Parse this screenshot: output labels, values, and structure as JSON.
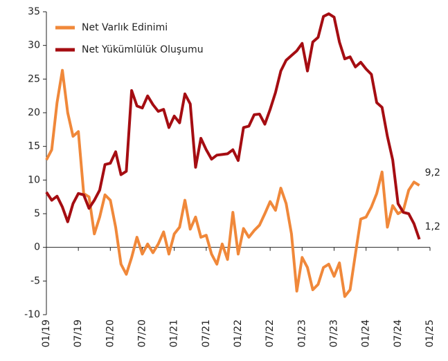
{
  "chart_data": {
    "type": "line",
    "categories": [
      "01/19",
      null,
      null,
      null,
      null,
      null,
      "07/19",
      null,
      null,
      null,
      null,
      null,
      "01/20",
      null,
      null,
      null,
      null,
      null,
      "07/20",
      null,
      null,
      null,
      null,
      null,
      "01/21",
      null,
      null,
      null,
      null,
      null,
      "07/21",
      null,
      null,
      null,
      null,
      null,
      "01/22",
      null,
      null,
      null,
      null,
      null,
      "07/22",
      null,
      null,
      null,
      null,
      null,
      "01/23",
      null,
      null,
      null,
      null,
      null,
      "07/23",
      null,
      null,
      null,
      null,
      null,
      "01/24",
      null,
      null,
      null,
      null,
      null,
      "07/24",
      null,
      null,
      null,
      null,
      null,
      "01/25"
    ],
    "series": [
      {
        "name": "Net Varlık Edinimi",
        "color": "#f0883a",
        "values": [
          13,
          14.5,
          21.5,
          26.3,
          20,
          16.5,
          17.2,
          8,
          7.5,
          2,
          4.5,
          7.8,
          7,
          3,
          -2.5,
          -4,
          -1.5,
          1.5,
          -1,
          0.5,
          -0.8,
          0.5,
          2.3,
          -1,
          2,
          3,
          7,
          2.7,
          4.5,
          1.5,
          1.8,
          -1,
          -2.5,
          0.5,
          -1.8,
          5.2,
          -1,
          2.8,
          1.5,
          2.5,
          3.3,
          5,
          6.8,
          5.5,
          8.8,
          6.5,
          2,
          -6.5,
          -1.5,
          -3,
          -6.3,
          -5.5,
          -3,
          -2.5,
          -4.3,
          -2.3,
          -7.3,
          -6.3,
          -1,
          4.2,
          4.5,
          6,
          8,
          11.2,
          3,
          6.2,
          5,
          5.5,
          8.5,
          9.7,
          9.2,
          null,
          null
        ],
        "value_labels": [
          null,
          null,
          null,
          null,
          null,
          null,
          null,
          null,
          null,
          null,
          null,
          null,
          null,
          null,
          null,
          null,
          null,
          null,
          null,
          null,
          null,
          null,
          null,
          null,
          null,
          null,
          null,
          null,
          null,
          null,
          null,
          null,
          null,
          null,
          null,
          null,
          null,
          null,
          null,
          null,
          null,
          null,
          null,
          null,
          null,
          null,
          null,
          null,
          null,
          null,
          null,
          null,
          null,
          null,
          null,
          null,
          null,
          null,
          null,
          null,
          null,
          null,
          null,
          null,
          null,
          null,
          null,
          null,
          null,
          null,
          "9,2",
          null,
          null
        ]
      },
      {
        "name": "Net Yükümlülük Oluşumu",
        "color": "#a50d12",
        "values": [
          8.2,
          7,
          7.6,
          6,
          3.8,
          6.5,
          8,
          7.8,
          5.8,
          7,
          8.5,
          12.3,
          12.5,
          14.2,
          10.8,
          11.3,
          23.3,
          21,
          20.7,
          22.5,
          21.2,
          20.2,
          20.5,
          17.8,
          19.5,
          18.5,
          22.8,
          21.3,
          11.9,
          16.2,
          14.5,
          13.1,
          13.7,
          13.8,
          13.9,
          14.5,
          12.9,
          17.8,
          18,
          19.7,
          19.8,
          18.3,
          20.5,
          23,
          26.2,
          27.8,
          28.5,
          29.2,
          30.3,
          26.2,
          30.5,
          31.2,
          34.3,
          34.7,
          34.2,
          30.5,
          28,
          28.3,
          26.8,
          27.5,
          26.5,
          25.7,
          21.5,
          20.8,
          16.5,
          13,
          6.5,
          5.2,
          5,
          3.5,
          1.2,
          null,
          null
        ],
        "value_labels": [
          null,
          null,
          null,
          null,
          null,
          null,
          null,
          null,
          null,
          null,
          null,
          null,
          null,
          null,
          null,
          null,
          null,
          null,
          null,
          null,
          null,
          null,
          null,
          null,
          null,
          null,
          null,
          null,
          null,
          null,
          null,
          null,
          null,
          null,
          null,
          null,
          null,
          null,
          null,
          null,
          null,
          null,
          null,
          null,
          null,
          null,
          null,
          null,
          null,
          null,
          null,
          null,
          null,
          null,
          null,
          null,
          null,
          null,
          null,
          null,
          null,
          null,
          null,
          null,
          null,
          null,
          null,
          null,
          null,
          null,
          "1,2",
          null,
          null
        ]
      }
    ],
    "ylim": [
      -10,
      35
    ],
    "yticks": [
      -10,
      -5,
      0,
      5,
      10,
      15,
      20,
      25,
      30,
      35
    ],
    "legend": "upper left"
  }
}
